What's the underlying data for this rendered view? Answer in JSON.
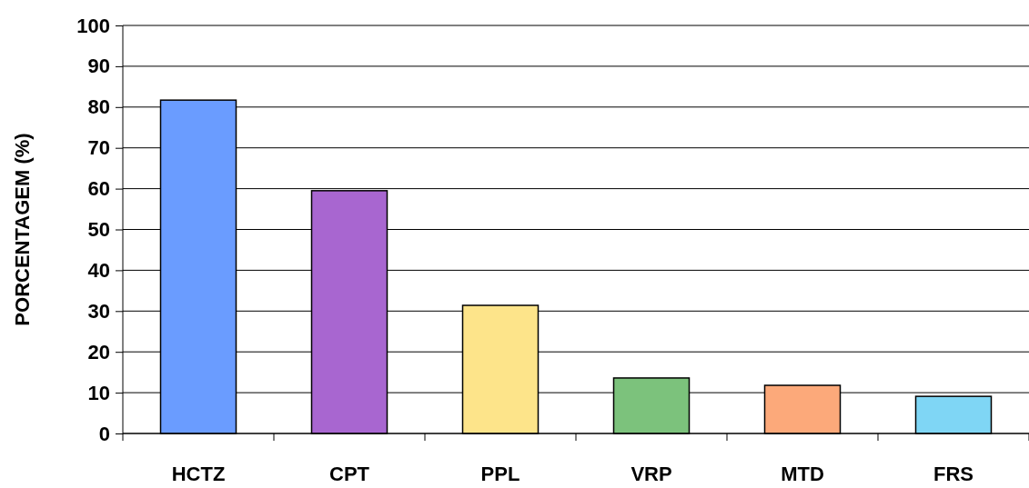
{
  "chart_data": {
    "type": "bar",
    "ylabel": "PORCENTAGEM (%)",
    "categories": [
      "HCTZ",
      "CPT",
      "PPL",
      "VRP",
      "MTD",
      "FRS"
    ],
    "values": [
      81.7,
      59.5,
      31.4,
      13.6,
      11.8,
      9.1
    ],
    "colors": [
      "#6a9cff",
      "#a866d0",
      "#fde48a",
      "#7cc27c",
      "#fca97a",
      "#7fd6f5"
    ],
    "ylim": [
      0,
      100
    ],
    "yticks": [
      0,
      10,
      20,
      30,
      40,
      50,
      60,
      70,
      80,
      90,
      100
    ],
    "grid": "y"
  }
}
